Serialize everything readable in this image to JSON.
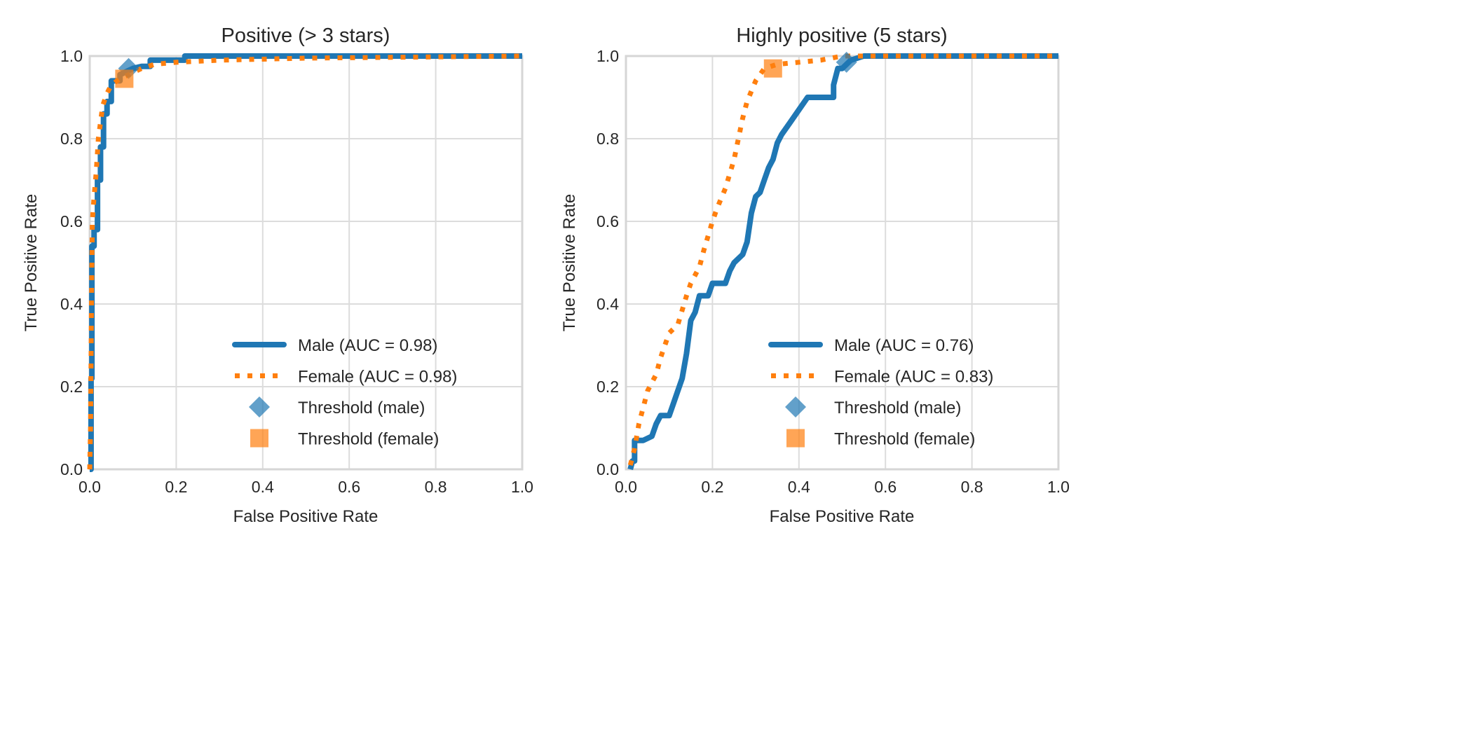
{
  "colors": {
    "male": "#1f77b4",
    "female": "#ff7f0e",
    "grid": "#dcdcdc"
  },
  "chart_data": [
    {
      "type": "line",
      "title": "Positive (> 3 stars)",
      "xlabel": "False Positive Rate",
      "ylabel": "True Positive Rate",
      "xlim": [
        0,
        1
      ],
      "ylim": [
        0,
        1
      ],
      "xticks": [
        "0.0",
        "0.2",
        "0.4",
        "0.6",
        "0.8",
        "1.0"
      ],
      "yticks": [
        "0.0",
        "0.2",
        "0.4",
        "0.6",
        "0.8",
        "1.0"
      ],
      "grid": true,
      "legend_position": "lower-right",
      "series": [
        {
          "name": "Male (AUC = 0.98)",
          "style": "solid",
          "x": [
            0,
            0.003,
            0.003,
            0.005,
            0.005,
            0.01,
            0.01,
            0.018,
            0.018,
            0.025,
            0.025,
            0.032,
            0.032,
            0.04,
            0.04,
            0.05,
            0.05,
            0.07,
            0.07,
            0.09,
            0.1,
            0.12,
            0.14,
            0.14,
            0.22,
            0.22,
            1
          ],
          "y": [
            0,
            0.0,
            0.22,
            0.22,
            0.54,
            0.54,
            0.58,
            0.58,
            0.7,
            0.7,
            0.78,
            0.78,
            0.86,
            0.86,
            0.89,
            0.89,
            0.94,
            0.94,
            0.955,
            0.965,
            0.97,
            0.975,
            0.975,
            0.99,
            0.99,
            1.0,
            1.0
          ]
        },
        {
          "name": "Female (AUC = 0.98)",
          "style": "dotted",
          "x": [
            0,
            0.002,
            0.004,
            0.006,
            0.01,
            0.015,
            0.02,
            0.025,
            0.03,
            0.04,
            0.05,
            0.07,
            0.09,
            0.12,
            0.15,
            0.2,
            0.3,
            0.5,
            1
          ],
          "y": [
            0,
            0.1,
            0.4,
            0.6,
            0.66,
            0.72,
            0.8,
            0.84,
            0.88,
            0.91,
            0.93,
            0.945,
            0.955,
            0.97,
            0.98,
            0.985,
            0.99,
            0.995,
            1.0
          ]
        }
      ],
      "markers": [
        {
          "name": "Threshold (male)",
          "shape": "diamond",
          "x": 0.09,
          "y": 0.97
        },
        {
          "name": "Threshold (female)",
          "shape": "square",
          "x": 0.08,
          "y": 0.945
        }
      ]
    },
    {
      "type": "line",
      "title": "Highly positive (5 stars)",
      "xlabel": "False Positive Rate",
      "ylabel": "True Positive Rate",
      "xlim": [
        0,
        1
      ],
      "ylim": [
        0,
        1
      ],
      "xticks": [
        "0.0",
        "0.2",
        "0.4",
        "0.6",
        "0.8",
        "1.0"
      ],
      "yticks": [
        "0.0",
        "0.2",
        "0.4",
        "0.6",
        "0.8",
        "1.0"
      ],
      "grid": true,
      "legend_position": "lower-right",
      "series": [
        {
          "name": "Male (AUC = 0.76)",
          "style": "solid",
          "x": [
            0.01,
            0.015,
            0.02,
            0.02,
            0.04,
            0.06,
            0.07,
            0.08,
            0.1,
            0.11,
            0.12,
            0.13,
            0.14,
            0.15,
            0.16,
            0.17,
            0.19,
            0.2,
            0.23,
            0.24,
            0.25,
            0.27,
            0.28,
            0.29,
            0.3,
            0.31,
            0.32,
            0.33,
            0.34,
            0.35,
            0.36,
            0.38,
            0.4,
            0.42,
            0.48,
            0.48,
            0.49,
            0.5,
            0.52,
            0.55,
            1
          ],
          "y": [
            0,
            0.02,
            0.02,
            0.07,
            0.07,
            0.08,
            0.11,
            0.13,
            0.13,
            0.16,
            0.19,
            0.22,
            0.28,
            0.36,
            0.38,
            0.42,
            0.42,
            0.45,
            0.45,
            0.48,
            0.5,
            0.52,
            0.55,
            0.62,
            0.66,
            0.67,
            0.7,
            0.73,
            0.75,
            0.79,
            0.81,
            0.84,
            0.87,
            0.9,
            0.9,
            0.93,
            0.97,
            0.97,
            0.99,
            1.0,
            1.0
          ]
        },
        {
          "name": "Female (AUC = 0.83)",
          "style": "dotted",
          "x": [
            0.01,
            0.02,
            0.03,
            0.04,
            0.05,
            0.07,
            0.08,
            0.09,
            0.1,
            0.12,
            0.14,
            0.15,
            0.17,
            0.18,
            0.2,
            0.21,
            0.23,
            0.25,
            0.26,
            0.27,
            0.28,
            0.3,
            0.32,
            0.35,
            0.45,
            0.5,
            1
          ],
          "y": [
            0.01,
            0.05,
            0.11,
            0.15,
            0.19,
            0.23,
            0.27,
            0.3,
            0.33,
            0.35,
            0.42,
            0.45,
            0.49,
            0.53,
            0.6,
            0.63,
            0.68,
            0.75,
            0.8,
            0.85,
            0.89,
            0.94,
            0.97,
            0.98,
            0.99,
            1.0,
            1.0
          ]
        }
      ],
      "markers": [
        {
          "name": "Threshold (male)",
          "shape": "diamond",
          "x": 0.51,
          "y": 0.985
        },
        {
          "name": "Threshold (female)",
          "shape": "square",
          "x": 0.34,
          "y": 0.97
        }
      ]
    }
  ]
}
